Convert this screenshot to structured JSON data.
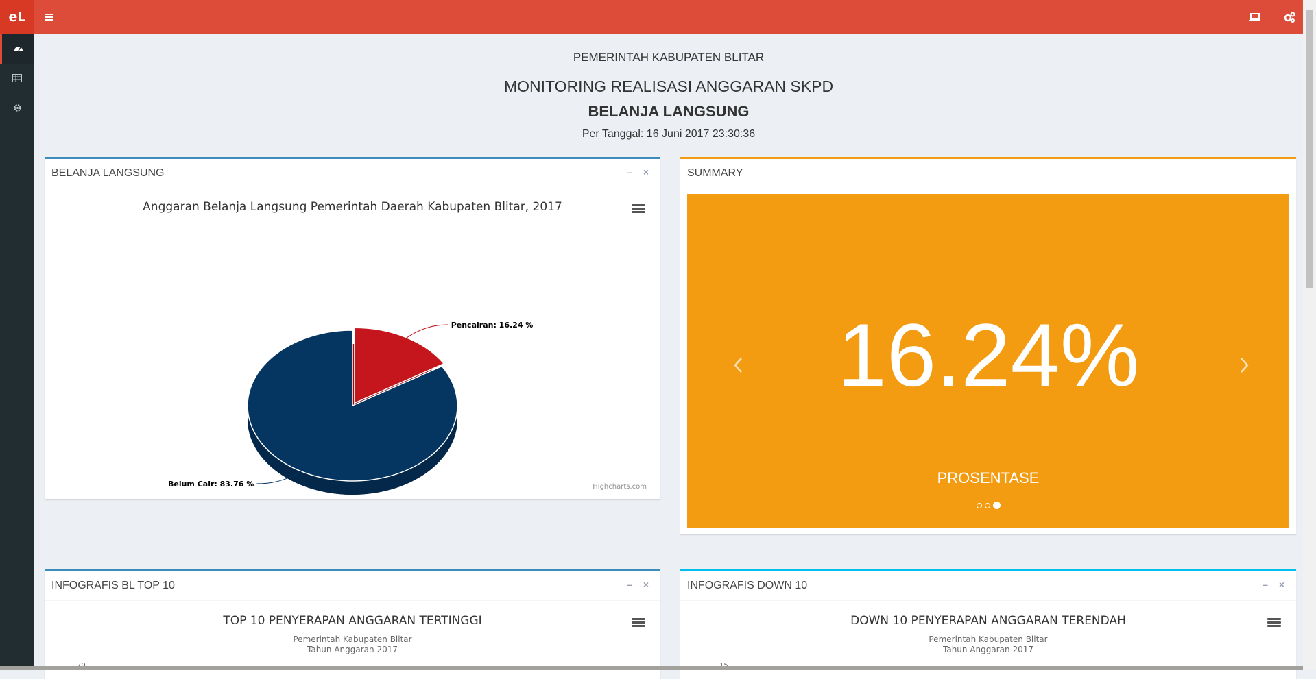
{
  "app": {
    "logo": "eL"
  },
  "page": {
    "org": "PEMERINTAH KABUPATEN BLITAR",
    "title": "MONITORING REALISASI ANGGARAN SKPD",
    "subtitle": "BELANJA LANGSUNG",
    "date": "Per Tanggal: 16 Juni 2017 23:30:36"
  },
  "panels": {
    "belanja": {
      "header": "BELANJA LANGSUNG",
      "credit": "Highcharts.com"
    },
    "summary": {
      "header": "SUMMARY",
      "value": "16.24%",
      "caption": "PROSENTASE"
    },
    "top10": {
      "header": "INFOGRAFIS BL TOP 10",
      "chart_title": "TOP 10 PENYERAPAN ANGGARAN TERTINGGI",
      "chart_subtitle_1": "Pemerintah Kabupaten Blitar",
      "chart_subtitle_2": "Tahun Anggaran 2017",
      "axis_top": "70"
    },
    "down10": {
      "header": "INFOGRAFIS DOWN 10",
      "chart_title": "DOWN 10 PENYERAPAN ANGGARAN TERENDAH",
      "chart_subtitle_1": "Pemerintah Kabupaten Blitar",
      "chart_subtitle_2": "Tahun Anggaran 2017",
      "axis_top": "15"
    }
  },
  "chart_data": {
    "type": "pie",
    "title": "Anggaran Belanja Langsung Pemerintah Daerah Kabupaten Blitar, 2017",
    "series": [
      {
        "name": "Pencairan",
        "value": 16.24,
        "label": "Pencairan: 16.24 %",
        "color": "#c4161c"
      },
      {
        "name": "Belum Cair",
        "value": 83.76,
        "label": "Belum Cair: 83.76 %",
        "color": "#053561"
      }
    ],
    "legend": "bottom"
  },
  "colors": {
    "topbar": "#dd4b39",
    "sidebar": "#222d32",
    "summary_bg": "#f39c12"
  },
  "icons": {
    "menu": "hamburger-icon",
    "monitor": "laptop-icon",
    "settings": "cogs-icon",
    "side": [
      "dashboard-icon",
      "table-icon",
      "gear-icon"
    ]
  }
}
